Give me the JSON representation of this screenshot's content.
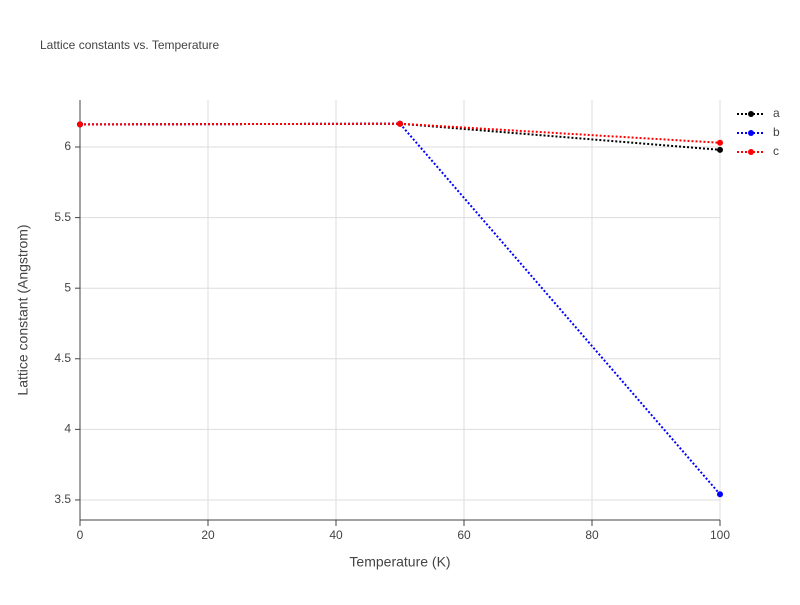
{
  "chart_data": {
    "type": "line",
    "title": "Lattice constants vs. Temperature",
    "x_label": "Temperature (K)",
    "y_label": "Lattice constant (Angstrom)",
    "x": [
      0,
      50,
      100
    ],
    "series": [
      {
        "name": "a",
        "color": "#000000",
        "values": [
          6.16,
          6.165,
          5.98
        ]
      },
      {
        "name": "b",
        "color": "#0000ff",
        "values": [
          6.16,
          6.165,
          3.54
        ]
      },
      {
        "name": "c",
        "color": "#ff0000",
        "values": [
          6.16,
          6.165,
          6.03
        ]
      }
    ],
    "xlim": [
      0,
      100
    ],
    "xticks": [
      0,
      20,
      40,
      60,
      80,
      100
    ],
    "ylim": [
      3.358,
      6.333
    ],
    "yticks": [
      3.5,
      4,
      4.5,
      5,
      5.5,
      6
    ],
    "grid": true,
    "legend": "right"
  }
}
